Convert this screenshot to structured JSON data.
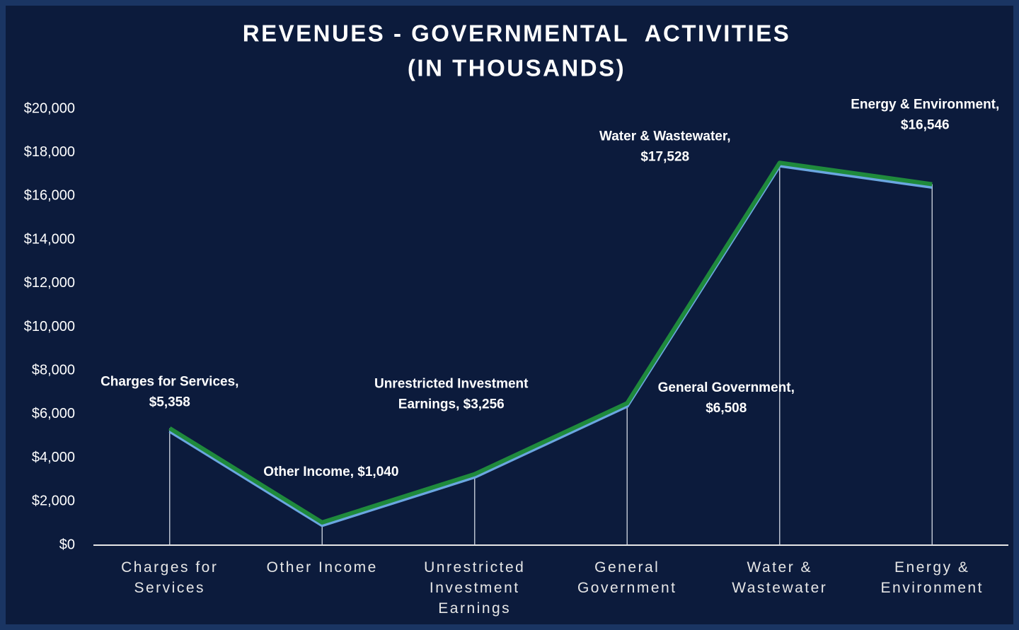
{
  "chart_data": {
    "type": "line",
    "title": [
      "REVENUES - GOVERNMENTAL  ACTIVITIES",
      "(IN THOUSANDS)"
    ],
    "categories": [
      "Charges for Services",
      "Other Income",
      "Unrestricted Investment Earnings",
      "General Government",
      "Water & Wastewater",
      "Energy & Environment"
    ],
    "series": [
      {
        "name": "Revenues",
        "color": "#1f8a3c",
        "values": [
          5358,
          1040,
          3256,
          6508,
          17528,
          16546
        ],
        "value_labels": [
          [
            "Charges for Services,",
            "$5,358"
          ],
          [
            "Other Income, $1,040"
          ],
          [
            "Unrestricted Investment",
            "Earnings, $3,256"
          ],
          [
            "General Government,",
            "$6,508"
          ],
          [
            "Water & Wastewater,",
            "$17,528"
          ],
          [
            "Energy & Environment,",
            "$16,546"
          ]
        ]
      }
    ],
    "ylim": [
      0,
      20000
    ],
    "yticks": [
      {
        "value": 0,
        "label": "$0"
      },
      {
        "value": 2000,
        "label": "$2,000"
      },
      {
        "value": 4000,
        "label": "$4,000"
      },
      {
        "value": 6000,
        "label": "$6,000"
      },
      {
        "value": 8000,
        "label": "$8,000"
      },
      {
        "value": 10000,
        "label": "$10,000"
      },
      {
        "value": 12000,
        "label": "$12,000"
      },
      {
        "value": 14000,
        "label": "$14,000"
      },
      {
        "value": 16000,
        "label": "$16,000"
      },
      {
        "value": 18000,
        "label": "$18,000"
      },
      {
        "value": 20000,
        "label": "$20,000"
      }
    ],
    "grid": false
  }
}
